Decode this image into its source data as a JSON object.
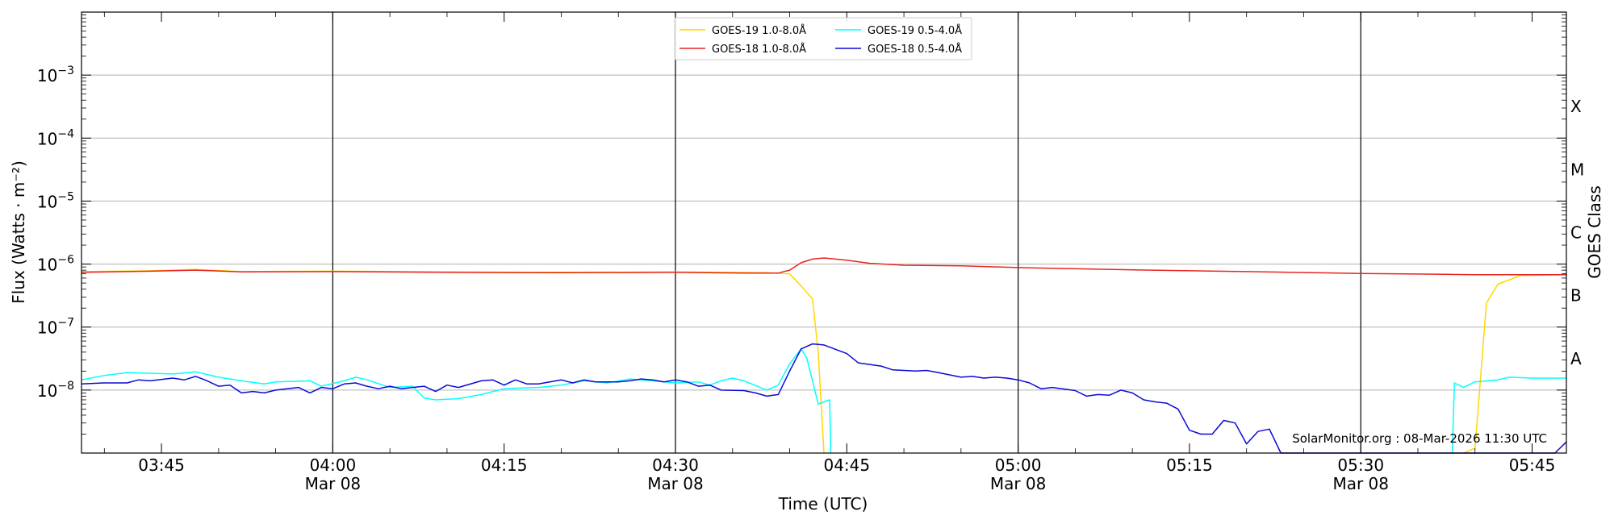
{
  "chart_data": {
    "type": "line",
    "xlabel": "Time (UTC)",
    "ylabel": "Flux (Watts · m⁻²)",
    "right_label": "GOES Class",
    "credit": "SolarMonitor.org : 08-Mar-2026 11:30 UTC",
    "yscale": "log",
    "ylim": [
      1e-09,
      0.01
    ],
    "xlim": [
      "03:38",
      "05:48"
    ],
    "grid": "horizontal at decades",
    "legend_position": "top-center",
    "x_ticks": [
      {
        "t": "03:45",
        "label": "03:45",
        "sublabel": ""
      },
      {
        "t": "04:00",
        "label": "04:00",
        "sublabel": "Mar 08"
      },
      {
        "t": "04:15",
        "label": "04:15",
        "sublabel": ""
      },
      {
        "t": "04:30",
        "label": "04:30",
        "sublabel": "Mar 08"
      },
      {
        "t": "04:45",
        "label": "04:45",
        "sublabel": ""
      },
      {
        "t": "05:00",
        "label": "05:00",
        "sublabel": "Mar 08"
      },
      {
        "t": "05:15",
        "label": "05:15",
        "sublabel": ""
      },
      {
        "t": "05:30",
        "label": "05:30",
        "sublabel": "Mar 08"
      },
      {
        "t": "05:45",
        "label": "05:45",
        "sublabel": ""
      }
    ],
    "y_ticks": [
      {
        "exp": -3,
        "label": "10",
        "sup": "−3"
      },
      {
        "exp": -4,
        "label": "10",
        "sup": "−4"
      },
      {
        "exp": -5,
        "label": "10",
        "sup": "−5"
      },
      {
        "exp": -6,
        "label": "10",
        "sup": "−6"
      },
      {
        "exp": -7,
        "label": "10",
        "sup": "−7"
      },
      {
        "exp": -8,
        "label": "10",
        "sup": "−8"
      }
    ],
    "classes": [
      {
        "label": "X",
        "exp": -3.5
      },
      {
        "label": "M",
        "exp": -4.5
      },
      {
        "label": "C",
        "exp": -5.5
      },
      {
        "label": "B",
        "exp": -6.5
      },
      {
        "label": "A",
        "exp": -7.5
      }
    ],
    "vlines": [
      "04:00",
      "04:30",
      "05:00",
      "05:30"
    ],
    "series": [
      {
        "name": "GOES-19 1.0-8.0Å",
        "color": "#FFD700",
        "legend_slot": 0,
        "points": [
          [
            "03:38",
            7.6e-07
          ],
          [
            "03:44",
            7.8e-07
          ],
          [
            "03:48",
            8.2e-07
          ],
          [
            "03:52",
            7.6e-07
          ],
          [
            "04:00",
            7.7e-07
          ],
          [
            "04:10",
            7.5e-07
          ],
          [
            "04:20",
            7.4e-07
          ],
          [
            "04:30",
            7.5e-07
          ],
          [
            "04:38",
            7.3e-07
          ],
          [
            "04:40",
            7e-07
          ],
          [
            "04:41",
            4.5e-07
          ],
          [
            "04:42",
            2.8e-07
          ],
          [
            "04:42.5",
            4e-08
          ],
          [
            "04:43",
            8e-10
          ],
          null,
          [
            "05:39",
            8e-10
          ],
          [
            "05:40",
            1.2e-09
          ],
          [
            "05:41",
            2.4e-07
          ],
          [
            "05:42",
            4.8e-07
          ],
          [
            "05:44",
            6.6e-07
          ],
          [
            "05:48",
            6.8e-07
          ]
        ]
      },
      {
        "name": "GOES-18 1.0-8.0Å",
        "color": "#E8251F",
        "legend_slot": 1,
        "points": [
          [
            "03:38",
            7.4e-07
          ],
          [
            "03:44",
            7.7e-07
          ],
          [
            "03:48",
            8e-07
          ],
          [
            "03:52",
            7.5e-07
          ],
          [
            "04:00",
            7.6e-07
          ],
          [
            "04:10",
            7.4e-07
          ],
          [
            "04:20",
            7.3e-07
          ],
          [
            "04:30",
            7.4e-07
          ],
          [
            "04:36",
            7.2e-07
          ],
          [
            "04:39",
            7.2e-07
          ],
          [
            "04:40",
            8e-07
          ],
          [
            "04:41",
            1.05e-06
          ],
          [
            "04:42",
            1.2e-06
          ],
          [
            "04:43",
            1.25e-06
          ],
          [
            "04:45",
            1.15e-06
          ],
          [
            "04:47",
            1.03e-06
          ],
          [
            "04:50",
            9.6e-07
          ],
          [
            "04:55",
            9.4e-07
          ],
          [
            "05:00",
            8.8e-07
          ],
          [
            "05:10",
            8.1e-07
          ],
          [
            "05:20",
            7.6e-07
          ],
          [
            "05:30",
            7.1e-07
          ],
          [
            "05:40",
            6.8e-07
          ],
          [
            "05:48",
            6.8e-07
          ]
        ]
      },
      {
        "name": "GOES-19 0.5-4.0Å",
        "color": "#00FFFF",
        "legend_slot": 2,
        "points": [
          [
            "03:38",
            1.45e-08
          ],
          [
            "03:40",
            1.7e-08
          ],
          [
            "03:42",
            1.9e-08
          ],
          [
            "03:44",
            1.85e-08
          ],
          [
            "03:46",
            1.8e-08
          ],
          [
            "03:48",
            1.95e-08
          ],
          [
            "03:50",
            1.6e-08
          ],
          [
            "03:52",
            1.4e-08
          ],
          [
            "03:54",
            1.25e-08
          ],
          [
            "03:55",
            1.35e-08
          ],
          [
            "03:58",
            1.4e-08
          ],
          [
            "03:59",
            1.15e-08
          ],
          [
            "04:01",
            1.4e-08
          ],
          [
            "04:02",
            1.6e-08
          ],
          [
            "04:03",
            1.45e-08
          ],
          [
            "04:05",
            1.1e-08
          ],
          [
            "04:07",
            1.15e-08
          ],
          [
            "04:08",
            7.5e-09
          ],
          [
            "04:09",
            7e-09
          ],
          [
            "04:11",
            7.3e-09
          ],
          [
            "04:13",
            8.5e-09
          ],
          [
            "04:15",
            1.05e-08
          ],
          [
            "04:18",
            1.1e-08
          ],
          [
            "04:20",
            1.2e-08
          ],
          [
            "04:22",
            1.4e-08
          ],
          [
            "04:24",
            1.3e-08
          ],
          [
            "04:26",
            1.5e-08
          ],
          [
            "04:28",
            1.4e-08
          ],
          [
            "04:30",
            1.3e-08
          ],
          [
            "04:32",
            1.35e-08
          ],
          [
            "04:33",
            1.2e-08
          ],
          [
            "04:34",
            1.4e-08
          ],
          [
            "04:35",
            1.55e-08
          ],
          [
            "04:36",
            1.4e-08
          ],
          [
            "04:38",
            1e-08
          ],
          [
            "04:39",
            1.2e-08
          ],
          [
            "04:40",
            2.6e-08
          ],
          [
            "04:41",
            4.5e-08
          ],
          [
            "04:41.5",
            3.2e-08
          ],
          [
            "04:42",
            1.4e-08
          ],
          [
            "04:42.5",
            6e-09
          ],
          [
            "04:43.5",
            7e-09
          ],
          [
            "04:43.6",
            8e-10
          ],
          null,
          [
            "05:38",
            8e-10
          ],
          [
            "05:38.2",
            1.3e-08
          ],
          [
            "05:39",
            1.1e-08
          ],
          [
            "05:40",
            1.35e-08
          ],
          [
            "05:42",
            1.45e-08
          ],
          [
            "05:43",
            1.6e-08
          ],
          [
            "05:45",
            1.55e-08
          ],
          [
            "05:48",
            1.55e-08
          ]
        ]
      },
      {
        "name": "GOES-18 0.5-4.0Å",
        "color": "#0A0AD8",
        "legend_slot": 3,
        "points": [
          [
            "03:38",
            1.25e-08
          ],
          [
            "03:40",
            1.3e-08
          ],
          [
            "03:42",
            1.3e-08
          ],
          [
            "03:43",
            1.45e-08
          ],
          [
            "03:44",
            1.4e-08
          ],
          [
            "03:46",
            1.55e-08
          ],
          [
            "03:47",
            1.45e-08
          ],
          [
            "03:48",
            1.65e-08
          ],
          [
            "03:49",
            1.4e-08
          ],
          [
            "03:50",
            1.15e-08
          ],
          [
            "03:51",
            1.2e-08
          ],
          [
            "03:52",
            9e-09
          ],
          [
            "03:53",
            9.5e-09
          ],
          [
            "03:54",
            9e-09
          ],
          [
            "03:55",
            1e-08
          ],
          [
            "03:57",
            1.1e-08
          ],
          [
            "03:58",
            9e-09
          ],
          [
            "03:59",
            1.1e-08
          ],
          [
            "04:00",
            1.05e-08
          ],
          [
            "04:01",
            1.25e-08
          ],
          [
            "04:02",
            1.3e-08
          ],
          [
            "04:03",
            1.15e-08
          ],
          [
            "04:04",
            1.05e-08
          ],
          [
            "04:05",
            1.15e-08
          ],
          [
            "04:06",
            1.05e-08
          ],
          [
            "04:07",
            1.1e-08
          ],
          [
            "04:08",
            1.15e-08
          ],
          [
            "04:09",
            9.5e-09
          ],
          [
            "04:10",
            1.2e-08
          ],
          [
            "04:11",
            1.1e-08
          ],
          [
            "04:13",
            1.4e-08
          ],
          [
            "04:14",
            1.45e-08
          ],
          [
            "04:15",
            1.2e-08
          ],
          [
            "04:16",
            1.45e-08
          ],
          [
            "04:17",
            1.25e-08
          ],
          [
            "04:18",
            1.25e-08
          ],
          [
            "04:19",
            1.35e-08
          ],
          [
            "04:20",
            1.45e-08
          ],
          [
            "04:21",
            1.3e-08
          ],
          [
            "04:22",
            1.45e-08
          ],
          [
            "04:23",
            1.35e-08
          ],
          [
            "04:25",
            1.35e-08
          ],
          [
            "04:26",
            1.4e-08
          ],
          [
            "04:27",
            1.5e-08
          ],
          [
            "04:28",
            1.45e-08
          ],
          [
            "04:29",
            1.35e-08
          ],
          [
            "04:30",
            1.45e-08
          ],
          [
            "04:31",
            1.35e-08
          ],
          [
            "04:32",
            1.15e-08
          ],
          [
            "04:33",
            1.2e-08
          ],
          [
            "04:34",
            1e-08
          ],
          [
            "04:36",
            9.8e-09
          ],
          [
            "04:37",
            9e-09
          ],
          [
            "04:38",
            8e-09
          ],
          [
            "04:39",
            8.5e-09
          ],
          [
            "04:40",
            2e-08
          ],
          [
            "04:41",
            4.5e-08
          ],
          [
            "04:42",
            5.4e-08
          ],
          [
            "04:43",
            5.2e-08
          ],
          [
            "04:45",
            3.8e-08
          ],
          [
            "04:46",
            2.7e-08
          ],
          [
            "04:48",
            2.4e-08
          ],
          [
            "04:49",
            2.1e-08
          ],
          [
            "04:50",
            2.05e-08
          ],
          [
            "04:51",
            2e-08
          ],
          [
            "04:52",
            2.05e-08
          ],
          [
            "04:53",
            1.9e-08
          ],
          [
            "04:55",
            1.6e-08
          ],
          [
            "04:56",
            1.65e-08
          ],
          [
            "04:57",
            1.55e-08
          ],
          [
            "04:58",
            1.6e-08
          ],
          [
            "04:59",
            1.55e-08
          ],
          [
            "05:00",
            1.45e-08
          ],
          [
            "05:01",
            1.3e-08
          ],
          [
            "05:02",
            1.05e-08
          ],
          [
            "05:03",
            1.1e-08
          ],
          [
            "05:05",
            9.8e-09
          ],
          [
            "05:06",
            8e-09
          ],
          [
            "05:07",
            8.5e-09
          ],
          [
            "05:08",
            8.3e-09
          ],
          [
            "05:09",
            1e-08
          ],
          [
            "05:10",
            9e-09
          ],
          [
            "05:11",
            7e-09
          ],
          [
            "05:12",
            6.5e-09
          ],
          [
            "05:13",
            6.2e-09
          ],
          [
            "05:14",
            5e-09
          ],
          [
            "05:15",
            2.3e-09
          ],
          [
            "05:16",
            2e-09
          ],
          [
            "05:17",
            2e-09
          ],
          [
            "05:18",
            3.3e-09
          ],
          [
            "05:19",
            3e-09
          ],
          [
            "05:20",
            1.4e-09
          ],
          [
            "05:21",
            2.2e-09
          ],
          [
            "05:22",
            2.4e-09
          ],
          [
            "05:23",
            8e-10
          ],
          [
            "05:47",
            8e-10
          ],
          [
            "05:48",
            1.5e-09
          ]
        ]
      }
    ]
  }
}
